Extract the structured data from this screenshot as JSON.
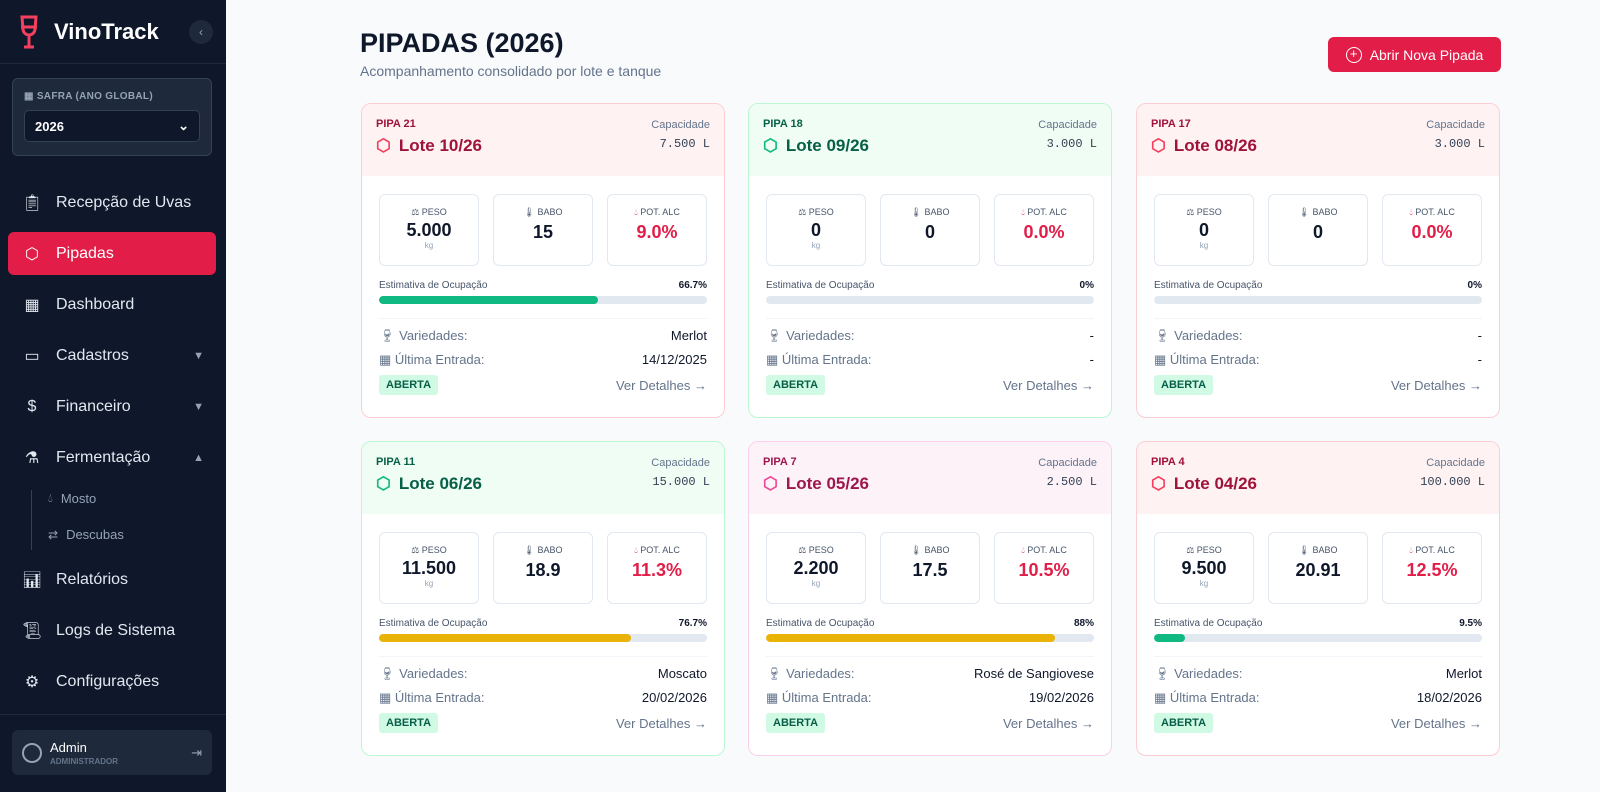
{
  "app": {
    "name": "VinoTrack"
  },
  "sidebar": {
    "safra_label": "SAFRA (ANO GLOBAL)",
    "safra_value": "2026",
    "items": [
      {
        "label": "Recepção de Uvas",
        "icon": "clipboard"
      },
      {
        "label": "Pipadas",
        "icon": "package"
      },
      {
        "label": "Dashboard",
        "icon": "layout"
      },
      {
        "label": "Cadastros",
        "icon": "folder"
      },
      {
        "label": "Financeiro",
        "icon": "dollar"
      },
      {
        "label": "Fermentação",
        "icon": "flask"
      },
      {
        "label": "Relatórios",
        "icon": "bar-chart"
      },
      {
        "label": "Logs de Sistema",
        "icon": "scroll"
      },
      {
        "label": "Configurações",
        "icon": "gear"
      }
    ],
    "subitems": [
      {
        "label": "Mosto"
      },
      {
        "label": "Descubas"
      }
    ],
    "user": {
      "name": "Admin",
      "role": "ADMINISTRADOR"
    }
  },
  "header": {
    "title": "PIPADAS (2026)",
    "subtitle": "Acompanhamento consolidado por lote e tanque",
    "new_button": "Abrir Nova Pipada"
  },
  "labels": {
    "capacity": "Capacidade",
    "peso": "PESO",
    "babo": "BABO",
    "pot": "POT. ALC",
    "kg": "kg",
    "occupancy": "Estimativa de Ocupação",
    "varieties": "Variedades:",
    "last": "Última Entrada:",
    "details": "Ver Detalhes →"
  },
  "colors": {
    "accent": "#e11d48",
    "green": "#10b981",
    "yellow": "#eab308"
  },
  "cards": [
    {
      "pipa": "PIPA 21",
      "lote": "Lote 10/26",
      "capacity": "7.500 L",
      "peso": "5.000",
      "babo": "15",
      "pot": "9.0%",
      "occupancy": "66.7%",
      "occ_value": 66.7,
      "bar": "green",
      "variety": "Merlot",
      "last": "14/12/2025",
      "status": "ABERTA",
      "theme": "red"
    },
    {
      "pipa": "PIPA 18",
      "lote": "Lote 09/26",
      "capacity": "3.000 L",
      "peso": "0",
      "babo": "0",
      "pot": "0.0%",
      "occupancy": "0%",
      "occ_value": 0,
      "bar": "green",
      "variety": "-",
      "last": "-",
      "status": "ABERTA",
      "theme": "green"
    },
    {
      "pipa": "PIPA 17",
      "lote": "Lote 08/26",
      "capacity": "3.000 L",
      "peso": "0",
      "babo": "0",
      "pot": "0.0%",
      "occupancy": "0%",
      "occ_value": 0,
      "bar": "green",
      "variety": "-",
      "last": "-",
      "status": "ABERTA",
      "theme": "red"
    },
    {
      "pipa": "PIPA 11",
      "lote": "Lote 06/26",
      "capacity": "15.000 L",
      "peso": "11.500",
      "babo": "18.9",
      "pot": "11.3%",
      "occupancy": "76.7%",
      "occ_value": 76.7,
      "bar": "yellow",
      "variety": "Moscato",
      "last": "20/02/2026",
      "status": "ABERTA",
      "theme": "green"
    },
    {
      "pipa": "PIPA 7",
      "lote": "Lote 05/26",
      "capacity": "2.500 L",
      "peso": "2.200",
      "babo": "17.5",
      "pot": "10.5%",
      "occupancy": "88%",
      "occ_value": 88,
      "bar": "yellow",
      "variety": "Rosé de Sangiovese",
      "last": "19/02/2026",
      "status": "ABERTA",
      "theme": "pink"
    },
    {
      "pipa": "PIPA 4",
      "lote": "Lote 04/26",
      "capacity": "100.000 L",
      "peso": "9.500",
      "babo": "20.91",
      "pot": "12.5%",
      "occupancy": "9.5%",
      "occ_value": 9.5,
      "bar": "green",
      "variety": "Merlot",
      "last": "18/02/2026",
      "status": "ABERTA",
      "theme": "red"
    }
  ]
}
